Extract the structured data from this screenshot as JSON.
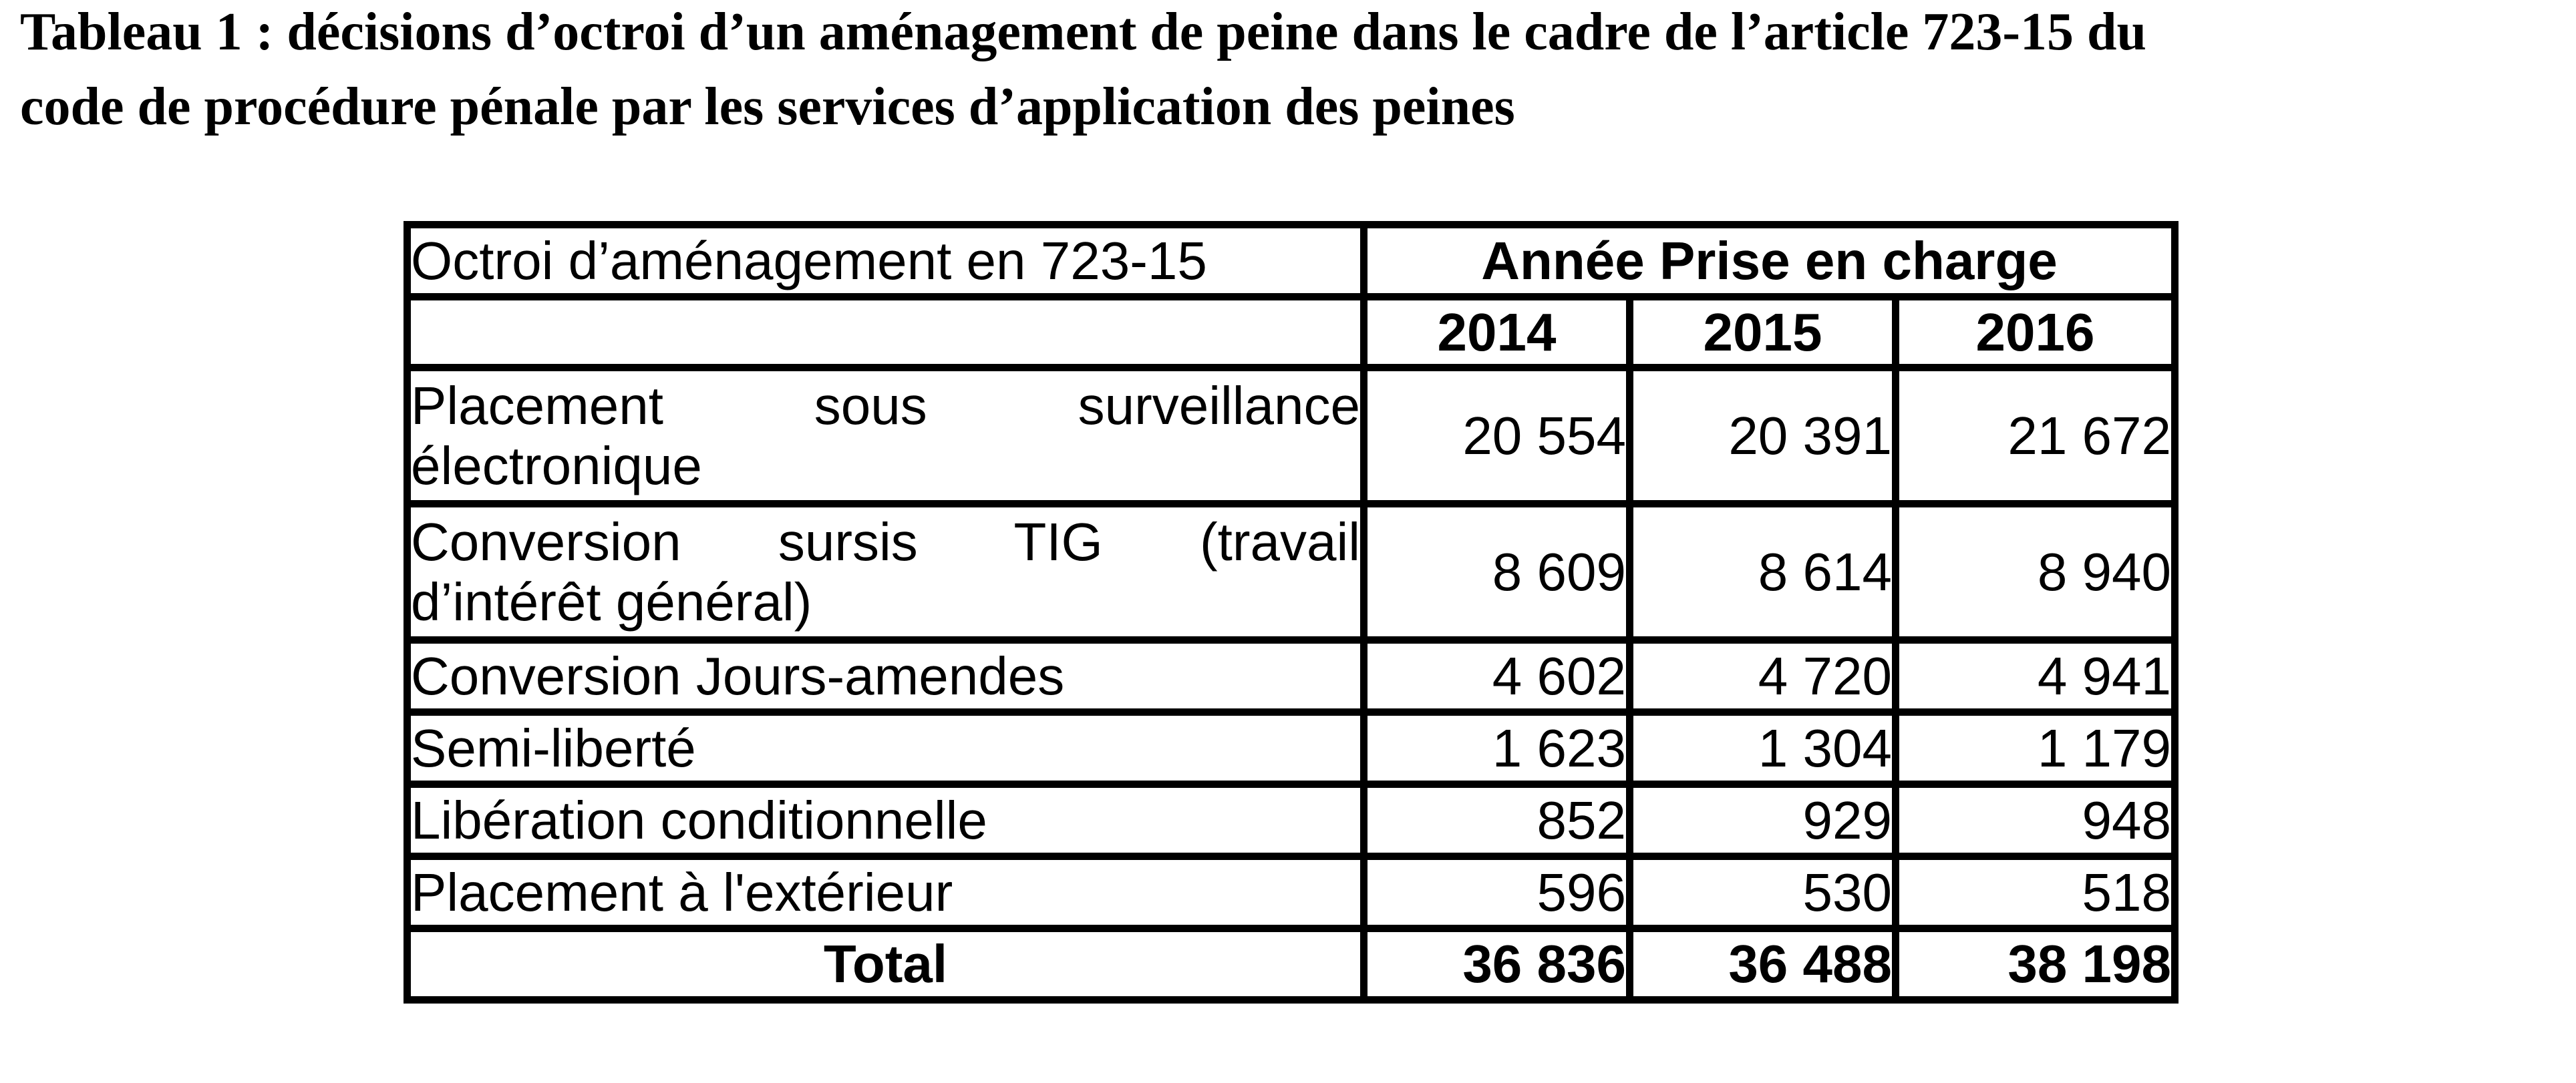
{
  "page": {
    "background_color": "#ffffff",
    "text_color": "#000000",
    "border_color": "#000000"
  },
  "title": {
    "line1": "Tableau 1 : décisions d’octroi d’un aménagement de peine dans le cadre de l’article 723-15 du",
    "line2": "code de procédure pénale par les services d’application des peines"
  },
  "table": {
    "corner_header": "Octroi d’aménagement en 723-15",
    "year_group_header": "Année Prise en charge",
    "years": [
      "2014",
      "2015",
      "2016"
    ],
    "rows": [
      {
        "line1": "Placement sous surveillance",
        "line2": "électronique",
        "values": [
          "20 554",
          "20 391",
          "21 672"
        ]
      },
      {
        "line1": "Conversion sursis TIG (travail",
        "line2": "d’intérêt général)",
        "values": [
          "8 609",
          "8 614",
          "8 940"
        ]
      },
      {
        "label": "Conversion Jours-amendes",
        "values": [
          "4 602",
          "4 720",
          "4 941"
        ]
      },
      {
        "label": "Semi-liberté",
        "values": [
          "1 623",
          "1 304",
          "1 179"
        ]
      },
      {
        "label": "Libération conditionnelle",
        "values": [
          "852",
          "929",
          "948"
        ]
      },
      {
        "label": "Placement à l'extérieur",
        "values": [
          "596",
          "530",
          "518"
        ]
      }
    ],
    "total": {
      "label": "Total",
      "values": [
        "36 836",
        "36 488",
        "38 198"
      ]
    }
  }
}
